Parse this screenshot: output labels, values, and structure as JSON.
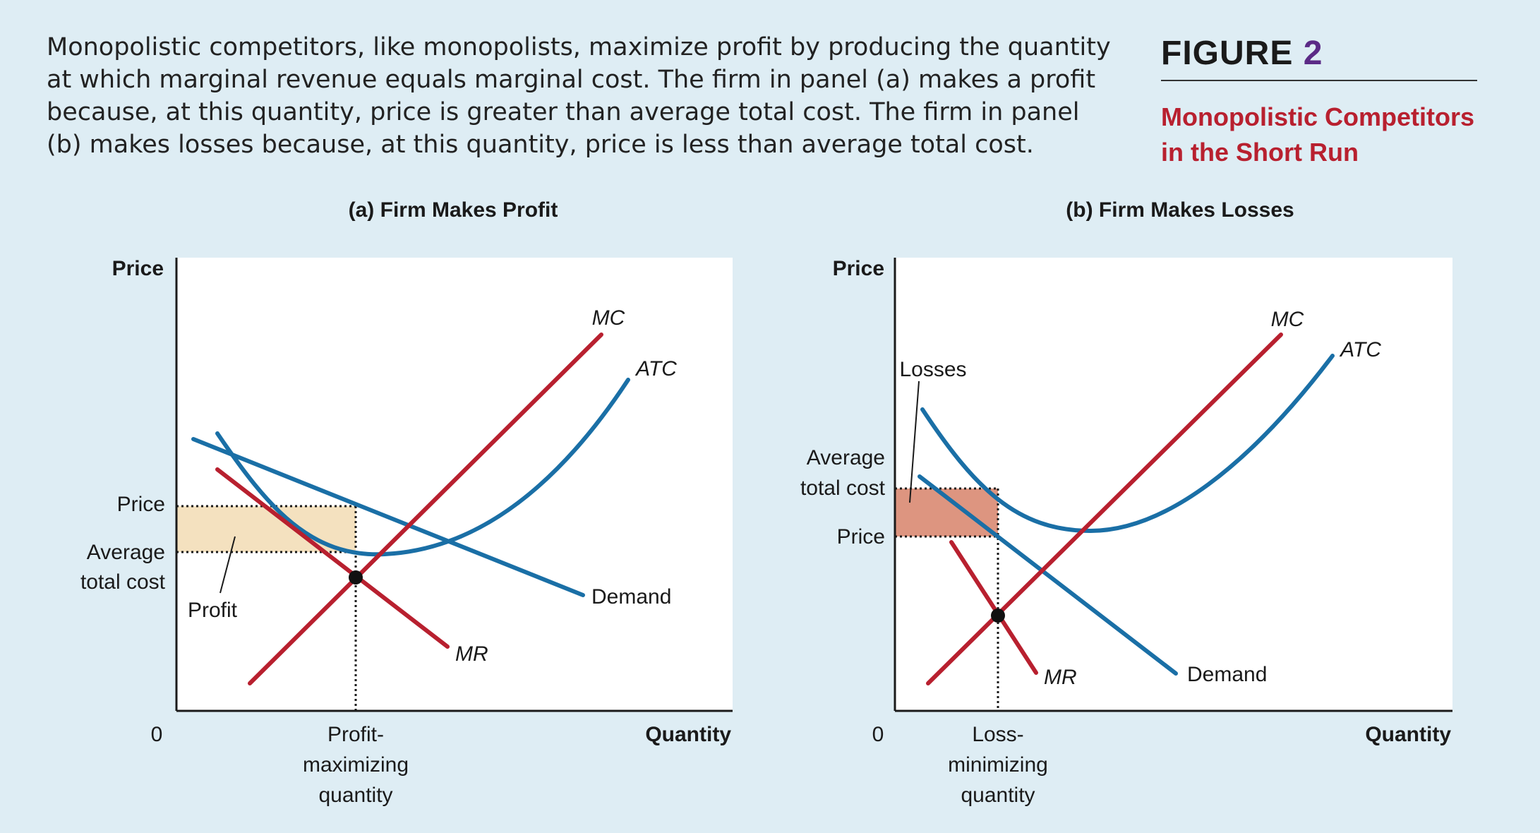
{
  "caption": "Monopolistic competitors, like monopolists, maximize profit by producing the quantity at which marginal revenue equals marginal cost. The firm in panel (a) makes a profit because, at this quantity, price is greater than average total cost. The firm in panel (b) makes losses because, at this quantity, price is less than average total cost.",
  "figure": {
    "label": "FIGURE",
    "number": "2",
    "subtitle_line1": "Monopolistic Competitors",
    "subtitle_line2": "in the Short Run"
  },
  "colors": {
    "red": "#b8202f",
    "blue": "#1a6fa6",
    "profit_fill": "#f4e1bf",
    "loss_fill": "#dd9580",
    "plot_bg": "#ffffff",
    "page_bg": "#deedf4"
  },
  "panel_a": {
    "title": "(a) Firm Makes Profit",
    "y_axis_label": "Price",
    "x_axis_label": "Quantity",
    "origin_label": "0",
    "price_label": "Price",
    "atc_label_line1": "Average",
    "atc_label_line2": "total cost",
    "profit_label": "Profit",
    "qty_label_line1": "Profit-",
    "qty_label_line2": "maximizing",
    "qty_label_line3": "quantity",
    "mc_label": "MC",
    "atc_label": "ATC",
    "demand_label": "Demand",
    "mr_label": "MR"
  },
  "panel_b": {
    "title": "(b) Firm Makes Losses",
    "y_axis_label": "Price",
    "x_axis_label": "Quantity",
    "origin_label": "0",
    "losses_label": "Losses",
    "atc_label_line1": "Average",
    "atc_label_line2": "total cost",
    "price_label": "Price",
    "qty_label_line1": "Loss-",
    "qty_label_line2": "minimizing",
    "qty_label_line3": "quantity",
    "mc_label": "MC",
    "atc_label": "ATC",
    "demand_label": "Demand",
    "mr_label": "MR"
  }
}
